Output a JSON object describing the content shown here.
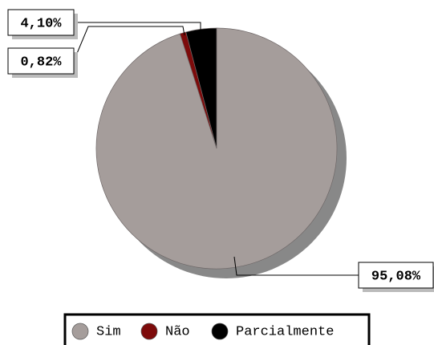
{
  "chart_data": {
    "type": "pie",
    "categories": [
      "Sim",
      "Não",
      "Parcialmente"
    ],
    "values": [
      95.08,
      0.82,
      4.1
    ],
    "value_labels": [
      "95,08%",
      "0,82%",
      "4,10%"
    ],
    "colors": [
      "#a59d9b",
      "#7d0b0b",
      "#000000"
    ],
    "legend": "bottom"
  }
}
